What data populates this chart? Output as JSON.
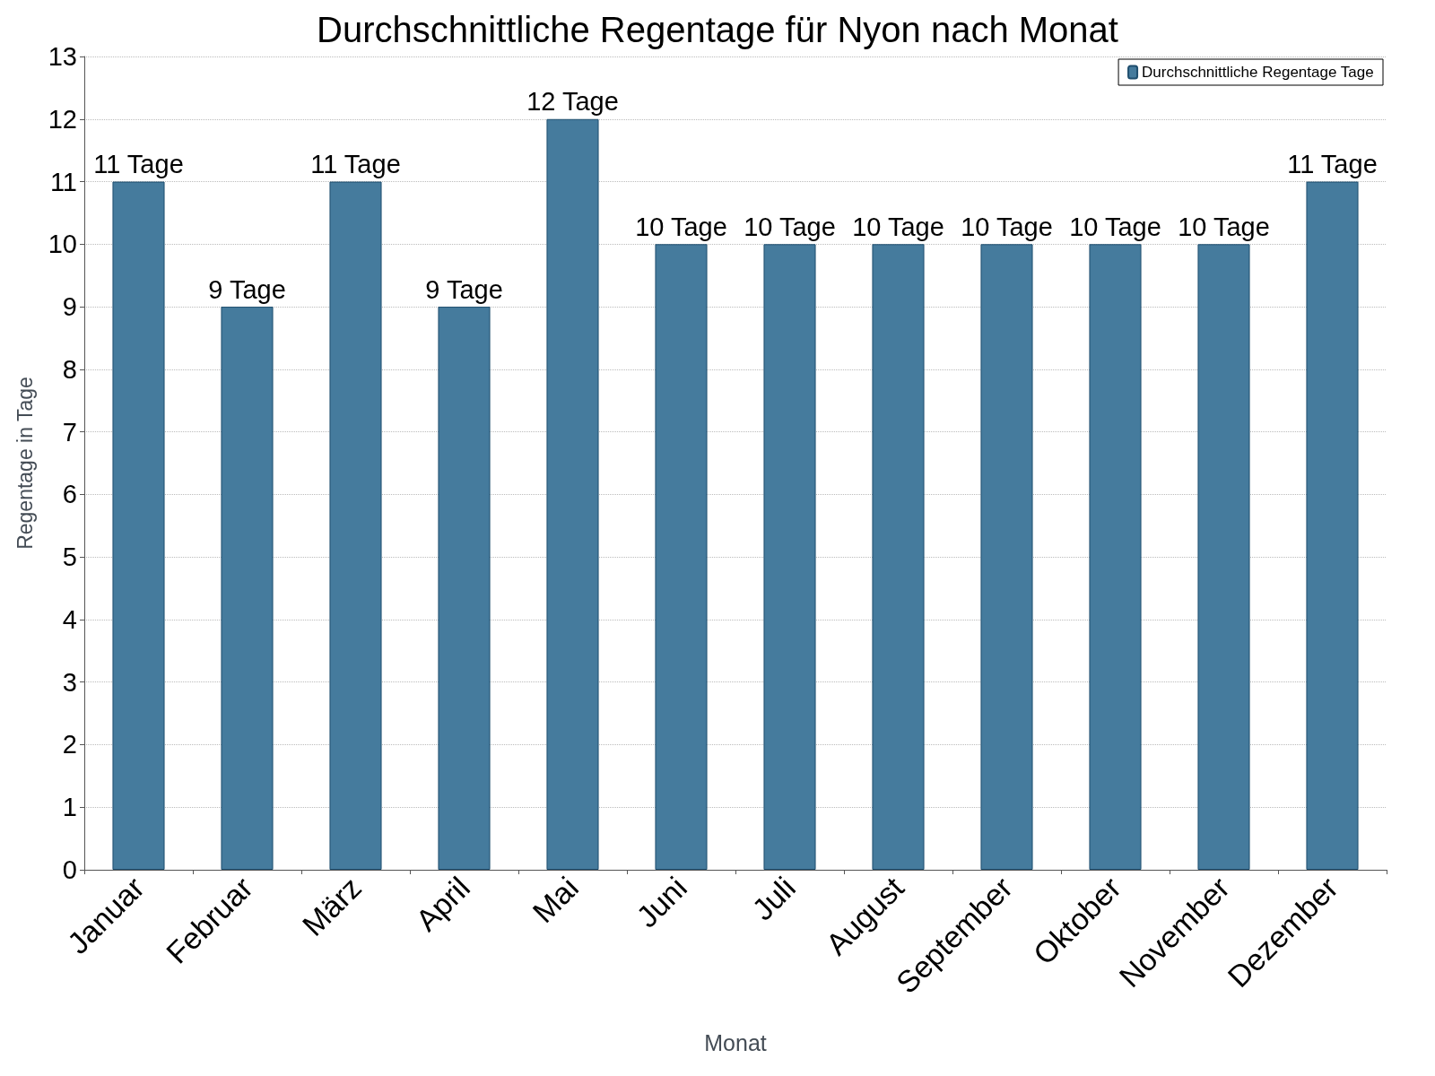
{
  "chart_data": {
    "type": "bar",
    "title": "Durchschnittliche Regentage für Nyon nach Monat",
    "xlabel": "Monat",
    "ylabel": "Regentage in Tage",
    "categories": [
      "Januar",
      "Februar",
      "März",
      "April",
      "Mai",
      "Juni",
      "Juli",
      "August",
      "September",
      "Oktober",
      "November",
      "Dezember"
    ],
    "series": [
      {
        "name": "Durchschnittliche Regentage Tage",
        "color": "#457b9d",
        "values": [
          11,
          9,
          11,
          9,
          12,
          10,
          10,
          10,
          10,
          10,
          10,
          11
        ],
        "value_labels": [
          "11 Tage",
          "9 Tage",
          "11 Tage",
          "9 Tage",
          "12 Tage",
          "10 Tage",
          "10 Tage",
          "10 Tage",
          "10 Tage",
          "10 Tage",
          "10 Tage",
          "11 Tage"
        ]
      }
    ],
    "ylim": [
      0,
      13
    ],
    "yticks": [
      0,
      1,
      2,
      3,
      4,
      5,
      6,
      7,
      8,
      9,
      10,
      11,
      12,
      13
    ],
    "grid": "y",
    "legend": "top right"
  }
}
